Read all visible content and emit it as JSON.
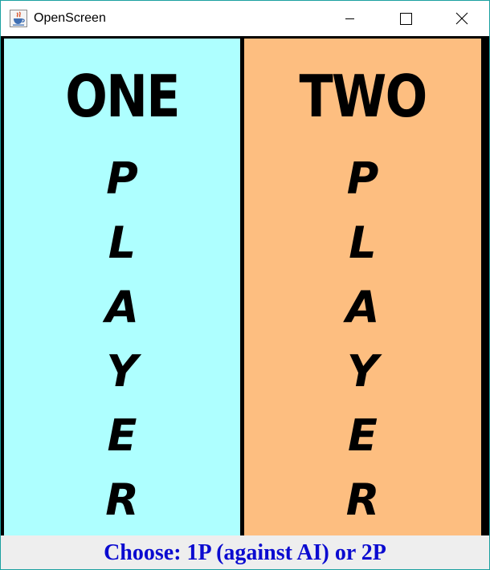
{
  "window": {
    "title": "OpenScreen",
    "app_icon": "java-icon",
    "controls": [
      "minimize-icon",
      "maximize-icon",
      "close-icon"
    ]
  },
  "panels": [
    {
      "title": "ONE",
      "letters": [
        "P",
        "L",
        "A",
        "Y",
        "E",
        "R"
      ],
      "background": "#aeffff"
    },
    {
      "title": "TWO",
      "letters": [
        "P",
        "L",
        "A",
        "Y",
        "E",
        "R"
      ],
      "background": "#fdbe80"
    }
  ],
  "footer": {
    "text": "Choose: 1P (against AI) or 2P",
    "color": "#0b0bd0"
  }
}
